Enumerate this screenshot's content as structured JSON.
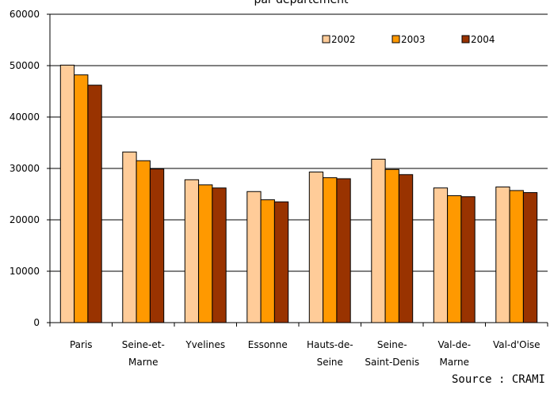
{
  "chart_data": {
    "type": "bar",
    "title": "par département",
    "categories": [
      [
        "Paris"
      ],
      [
        "Seine-et-",
        "Marne"
      ],
      [
        "Yvelines"
      ],
      [
        "Essonne"
      ],
      [
        "Hauts-de-",
        "Seine"
      ],
      [
        "Seine-",
        "Saint-Denis"
      ],
      [
        "Val-de-",
        "Marne"
      ],
      [
        "Val-d'Oise"
      ]
    ],
    "series": [
      {
        "name": "2002",
        "color": "#FFCC99",
        "values": [
          50100,
          33200,
          27800,
          25500,
          29300,
          31800,
          26200,
          26400
        ]
      },
      {
        "name": "2003",
        "color": "#FF9900",
        "values": [
          48200,
          31500,
          26800,
          23900,
          28200,
          29800,
          24700,
          25700
        ]
      },
      {
        "name": "2004",
        "color": "#993300",
        "values": [
          46200,
          29900,
          26200,
          23500,
          28000,
          28800,
          24500,
          25300
        ]
      }
    ],
    "yticks": [
      0,
      10000,
      20000,
      30000,
      40000,
      50000,
      60000
    ],
    "ylim": [
      0,
      60000
    ],
    "grid": true,
    "legend_position": "top-right"
  },
  "source": "Source : CRAMI"
}
